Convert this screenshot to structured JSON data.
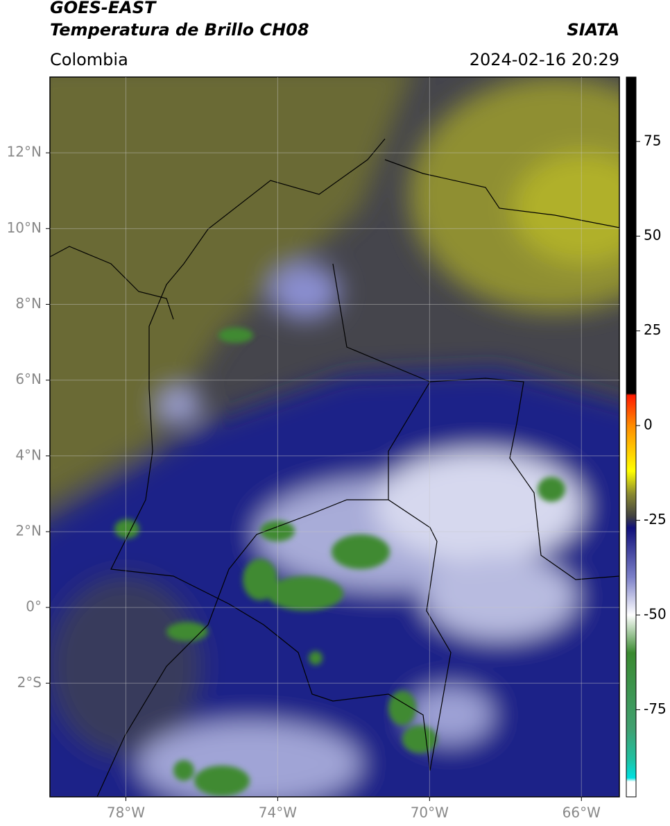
{
  "header": {
    "title": "GOES-EAST",
    "subtitle": "Temperatura de Brillo CH08",
    "source": "SIATA",
    "region": "Colombia",
    "datetime": "2024-02-16 20:29"
  },
  "map": {
    "xlim": [
      -80,
      -65
    ],
    "ylim": [
      -5,
      14
    ],
    "xticks": [
      {
        "value": -78,
        "label": "78°W"
      },
      {
        "value": -74,
        "label": "74°W"
      },
      {
        "value": -70,
        "label": "70°W"
      },
      {
        "value": -66,
        "label": "66°W"
      }
    ],
    "yticks": [
      {
        "value": 12,
        "label": "12°N"
      },
      {
        "value": 10,
        "label": "10°N"
      },
      {
        "value": 8,
        "label": "8°N"
      },
      {
        "value": 6,
        "label": "6°N"
      },
      {
        "value": 4,
        "label": "4°N"
      },
      {
        "value": 2,
        "label": "2°N"
      },
      {
        "value": 0,
        "label": "0°"
      },
      {
        "value": -2,
        "label": "2°S"
      }
    ],
    "grid": true
  },
  "colorbar": {
    "lim": [
      -98,
      92
    ],
    "ticks": [
      75,
      50,
      25,
      0,
      -25,
      -50,
      -75
    ],
    "colormap": [
      {
        "value": 92,
        "color": "#000000"
      },
      {
        "value": 8.5,
        "color": "#000000"
      },
      {
        "value": 8,
        "color": "#ff1a00"
      },
      {
        "value": 0,
        "color": "#ff8c00"
      },
      {
        "value": -12,
        "color": "#ffff00"
      },
      {
        "value": -18,
        "color": "#8a8a30"
      },
      {
        "value": -24,
        "color": "#404040"
      },
      {
        "value": -27,
        "color": "#10107a"
      },
      {
        "value": -40,
        "color": "#7c80c8"
      },
      {
        "value": -50,
        "color": "#ffffff"
      },
      {
        "value": -60,
        "color": "#3a8a30"
      },
      {
        "value": -80,
        "color": "#40a070"
      },
      {
        "value": -88,
        "color": "#20c0a0"
      },
      {
        "value": -93,
        "color": "#00e0e0"
      },
      {
        "value": -94,
        "color": "#ffffff"
      },
      {
        "value": -98,
        "color": "#ffffff"
      }
    ]
  }
}
